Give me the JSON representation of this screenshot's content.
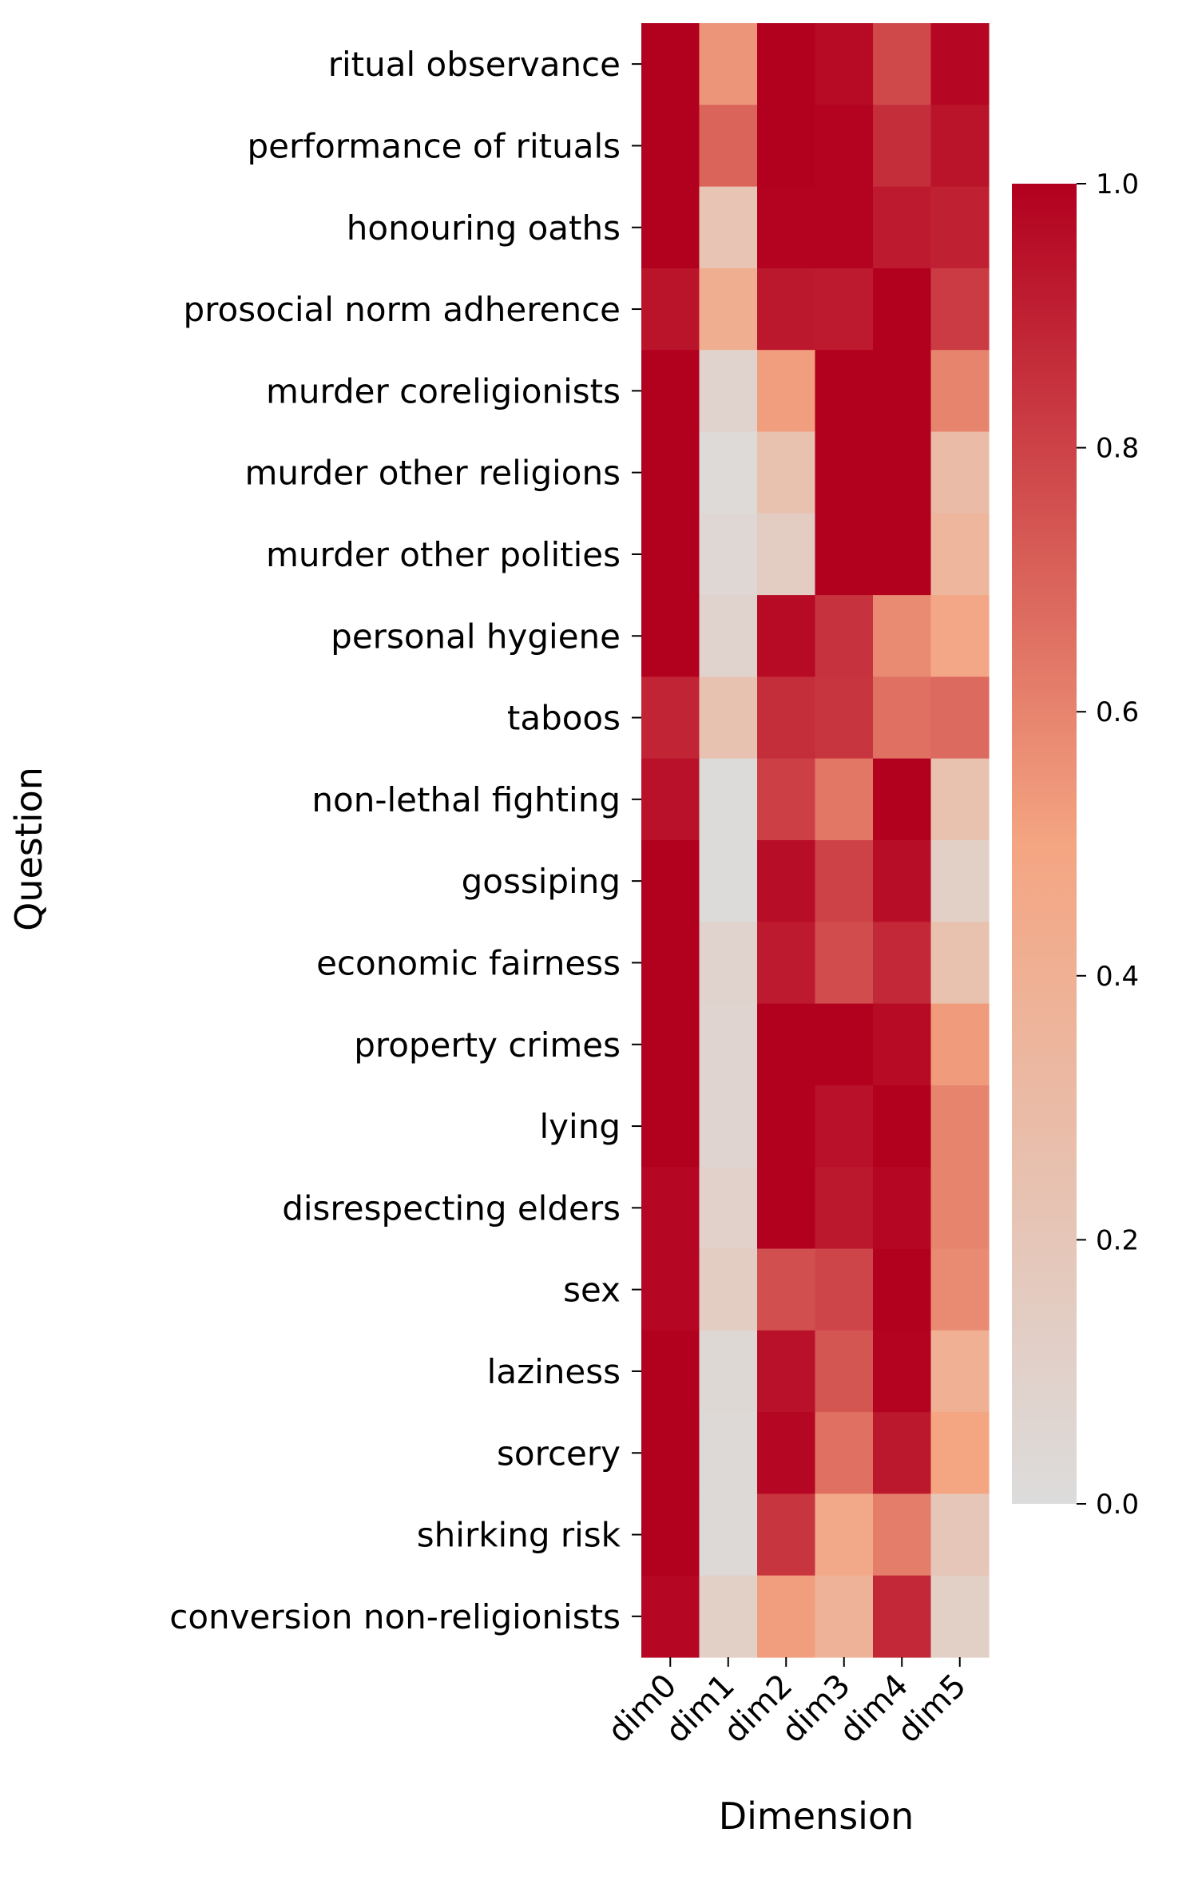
{
  "chart_data": {
    "type": "heatmap",
    "title": "",
    "xlabel": "Dimension",
    "ylabel": "Question",
    "x_categories": [
      "dim0",
      "dim1",
      "dim2",
      "dim3",
      "dim4",
      "dim5"
    ],
    "y_categories": [
      "ritual observance",
      "performance of rituals",
      "honouring oaths",
      "prosocial norm adherence",
      "murder coreligionists",
      "murder other religions",
      "murder other polities",
      "personal hygiene",
      "taboos",
      "non-lethal fighting",
      "gossiping",
      "economic fairness",
      "property crimes",
      "lying",
      "disrespecting elders",
      "sex",
      "laziness",
      "sorcery",
      "shirking risk",
      "conversion non-religionists"
    ],
    "values": [
      [
        1.0,
        0.55,
        1.0,
        0.97,
        0.78,
        0.98
      ],
      [
        1.0,
        0.7,
        1.0,
        0.99,
        0.86,
        0.94
      ],
      [
        1.0,
        0.22,
        0.99,
        0.99,
        0.92,
        0.9
      ],
      [
        0.94,
        0.42,
        0.93,
        0.92,
        1.0,
        0.82
      ],
      [
        1.0,
        0.08,
        0.52,
        1.0,
        1.0,
        0.6
      ],
      [
        1.0,
        0.02,
        0.25,
        1.0,
        1.0,
        0.3
      ],
      [
        1.0,
        0.05,
        0.15,
        1.0,
        1.0,
        0.35
      ],
      [
        1.0,
        0.08,
        0.97,
        0.85,
        0.58,
        0.48
      ],
      [
        0.89,
        0.24,
        0.86,
        0.84,
        0.66,
        0.68
      ],
      [
        0.95,
        0.01,
        0.81,
        0.64,
        1.0,
        0.25
      ],
      [
        1.0,
        0.01,
        0.96,
        0.8,
        0.96,
        0.12
      ],
      [
        1.0,
        0.08,
        0.92,
        0.77,
        0.88,
        0.25
      ],
      [
        1.0,
        0.07,
        1.0,
        1.0,
        0.97,
        0.53
      ],
      [
        1.0,
        0.07,
        1.0,
        0.95,
        1.0,
        0.6
      ],
      [
        0.98,
        0.1,
        1.0,
        0.93,
        0.98,
        0.6
      ],
      [
        0.98,
        0.15,
        0.76,
        0.79,
        1.0,
        0.58
      ],
      [
        1.0,
        0.04,
        0.95,
        0.74,
        0.99,
        0.4
      ],
      [
        1.0,
        0.03,
        0.98,
        0.66,
        0.93,
        0.5
      ],
      [
        1.0,
        0.03,
        0.84,
        0.46,
        0.62,
        0.2
      ],
      [
        0.98,
        0.12,
        0.52,
        0.38,
        0.88,
        0.12
      ]
    ],
    "vmin": 0.0,
    "vmax": 1.0,
    "colormap": {
      "low": "#dcdcdc",
      "mid": "#f4a582",
      "high": "#b2001f"
    },
    "colorbar_ticks": [
      0.0,
      0.2,
      0.4,
      0.6,
      0.8,
      1.0
    ],
    "colorbar_tick_labels": [
      "0.0",
      "0.2",
      "0.4",
      "0.6",
      "0.8",
      "1.0"
    ]
  }
}
